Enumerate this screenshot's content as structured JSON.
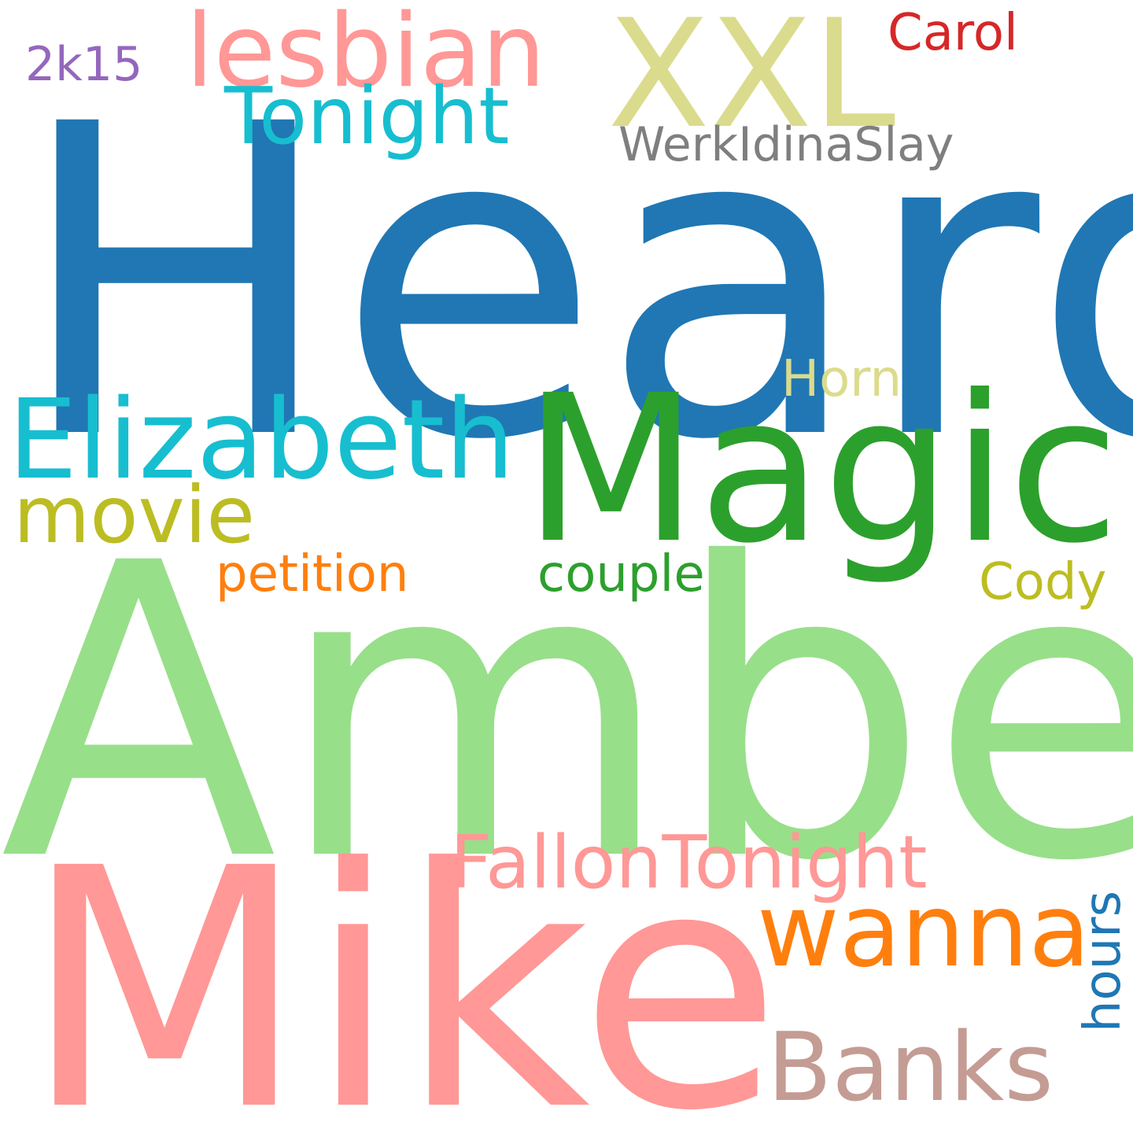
{
  "word_cloud": {
    "background": "#ffffff",
    "words": [
      {
        "key": "heard",
        "text": "Heard",
        "color": "#2077b4"
      },
      {
        "key": "amber",
        "text": "Amber",
        "color": "#98df8a"
      },
      {
        "key": "mike",
        "text": "Mike",
        "color": "#ff9896"
      },
      {
        "key": "magic",
        "text": "Magic",
        "color": "#2ca02c"
      },
      {
        "key": "xxl",
        "text": "XXL",
        "color": "#dbdb8d"
      },
      {
        "key": "lesbian",
        "text": "lesbian",
        "color": "#ff9896"
      },
      {
        "key": "tonight",
        "text": "Tonight",
        "color": "#17becf"
      },
      {
        "key": "elizabeth",
        "text": "Elizabeth",
        "color": "#17becf"
      },
      {
        "key": "wanna",
        "text": "wanna",
        "color": "#ff7f0e"
      },
      {
        "key": "banks",
        "text": "Banks",
        "color": "#c49c94"
      },
      {
        "key": "fallon",
        "text": "FallonTonight",
        "color": "#ff9896"
      },
      {
        "key": "movie",
        "text": "movie",
        "color": "#bcbd22"
      },
      {
        "key": "werk",
        "text": "WerkIdinaSlay",
        "color": "#7f7f7f"
      },
      {
        "key": "petition",
        "text": "petition",
        "color": "#ff7f0e"
      },
      {
        "key": "couple",
        "text": "couple",
        "color": "#2ca02c"
      },
      {
        "key": "cody",
        "text": "Cody",
        "color": "#bcbd22"
      },
      {
        "key": "horn",
        "text": "Horn",
        "color": "#dbdb8d"
      },
      {
        "key": "carol",
        "text": "Carol",
        "color": "#d62728"
      },
      {
        "key": "2k15",
        "text": "2k15",
        "color": "#9467bd"
      },
      {
        "key": "hours",
        "text": "hours",
        "color": "#1f77b4",
        "orientation": "vertical"
      }
    ]
  }
}
